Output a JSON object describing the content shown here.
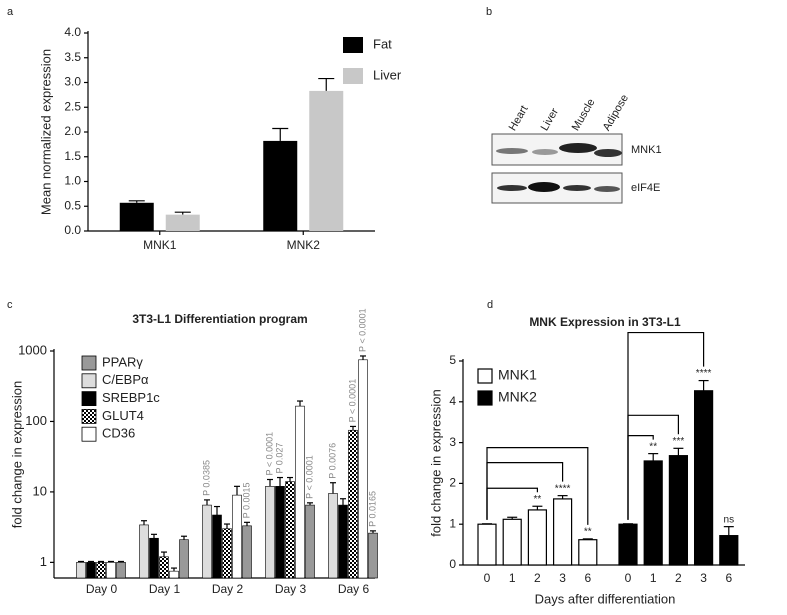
{
  "panel_labels": [
    "a",
    "b",
    "c",
    "d"
  ],
  "blot": {
    "lanes": [
      "Heart",
      "Liver",
      "Muscle",
      "Adipose"
    ],
    "rows": [
      "MNK1",
      "eIF4E"
    ]
  },
  "chart_data": [
    {
      "type": "bar",
      "y_label": "Mean normalized expression",
      "categories": [
        "MNK1",
        "MNK2"
      ],
      "series": [
        {
          "name": "Fat",
          "color": "#000000",
          "values": [
            0.57,
            1.82
          ],
          "errors": [
            0.04,
            0.25
          ]
        },
        {
          "name": "Liver",
          "color": "#c8c8c8",
          "values": [
            0.33,
            2.83
          ],
          "errors": [
            0.05,
            0.25
          ]
        }
      ],
      "ylim": [
        0,
        4
      ],
      "yticks": [
        {
          "value": 0,
          "label": "0.0"
        },
        {
          "value": 0.5,
          "label": "0.5"
        },
        {
          "value": 1,
          "label": "1.0"
        },
        {
          "value": 1.5,
          "label": "1.5"
        },
        {
          "value": 2,
          "label": "2.0"
        },
        {
          "value": 2.5,
          "label": "2.5"
        },
        {
          "value": 3,
          "label": "3.0"
        },
        {
          "value": 3.5,
          "label": "3.5"
        },
        {
          "value": 4,
          "label": "4.0"
        }
      ],
      "legend": "upper right"
    },
    {
      "type": "bar",
      "title": "3T3-L1 Differentiation program",
      "y_label": "fold change in expression",
      "y_scale": "log",
      "categories": [
        "Day 0",
        "Day 1",
        "Day 2",
        "Day 3",
        "Day 6"
      ],
      "series": [
        {
          "name": "PPARγ",
          "color": "#999999",
          "values": [
            1,
            2.1,
            3.3,
            6.5,
            2.6
          ],
          "errors": [
            0.03,
            0.25,
            0.4,
            0.5,
            0.2
          ],
          "annotations": [
            null,
            null,
            "P 0.0015",
            "P < 0.0001",
            "P 0.0165"
          ]
        },
        {
          "name": "C/EBPα",
          "color": "#dddddd",
          "values": [
            1,
            3.4,
            6.5,
            12,
            9.5
          ],
          "errors": [
            0.03,
            0.5,
            1.2,
            3,
            4
          ],
          "annotations": [
            null,
            null,
            "P 0.0385",
            "P < 0.0001",
            "P 0.0076"
          ]
        },
        {
          "name": "SREBP1c",
          "color": "#000000",
          "values": [
            1,
            2.2,
            4.7,
            12,
            6.5
          ],
          "errors": [
            0.03,
            0.3,
            1.5,
            4,
            1.5
          ],
          "annotations": [
            null,
            null,
            null,
            "P 0.027",
            null
          ]
        },
        {
          "name": "GLUT4",
          "color": "#000000",
          "pattern": "checker",
          "values": [
            1,
            1.2,
            3,
            14,
            75
          ],
          "errors": [
            0.03,
            0.2,
            0.5,
            2,
            10
          ],
          "annotations": [
            null,
            null,
            null,
            null,
            "P < 0.0001"
          ]
        },
        {
          "name": "CD36",
          "color": "#ffffff",
          "values": [
            1,
            0.75,
            9,
            165,
            750
          ],
          "errors": [
            0.03,
            0.08,
            3,
            30,
            100
          ],
          "annotations": [
            null,
            null,
            null,
            null,
            "P < 0.0001"
          ]
        }
      ],
      "ylim": [
        0.6,
        1000
      ],
      "yticks": [
        1,
        10,
        100,
        1000
      ],
      "legend": "upper left"
    },
    {
      "type": "bar",
      "title": "MNK Expression in 3T3-L1",
      "x_label": "Days after differentiation",
      "y_label": "fold change in expression",
      "categories": [
        "0",
        "1",
        "2",
        "3",
        "6"
      ],
      "series": [
        {
          "name": "MNK1",
          "color": "#ffffff",
          "values": [
            1,
            1.12,
            1.35,
            1.62,
            0.62
          ],
          "errors": [
            0.01,
            0.05,
            0.09,
            0.08,
            0.02
          ],
          "annotations": [
            null,
            null,
            "**",
            "****",
            "**"
          ]
        },
        {
          "name": "MNK2",
          "color": "#000000",
          "values": [
            1,
            2.55,
            2.68,
            4.27,
            0.72
          ],
          "errors": [
            0.01,
            0.18,
            0.18,
            0.25,
            0.22
          ],
          "annotations": [
            null,
            "**",
            "***",
            "****",
            "ns"
          ]
        }
      ],
      "ylim": [
        0,
        5
      ],
      "yticks": [
        0,
        1,
        2,
        3,
        4,
        5
      ],
      "legend": "upper left"
    }
  ]
}
